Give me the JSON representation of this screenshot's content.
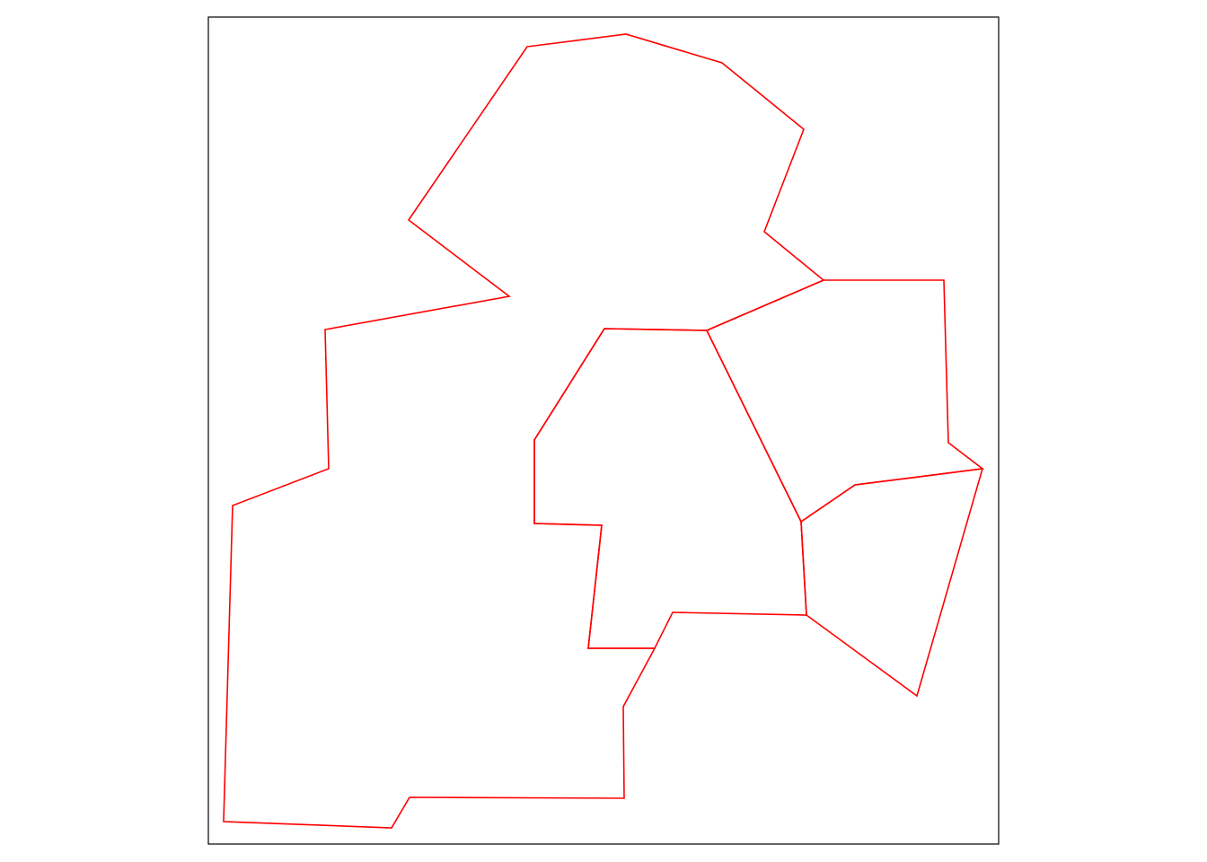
{
  "map": {
    "colors": {
      "background": "#ffffff",
      "frame": "#000000",
      "boundary": "#ff0000"
    },
    "regions": [
      {
        "id": "region-north"
      },
      {
        "id": "region-west"
      },
      {
        "id": "region-central"
      },
      {
        "id": "region-east"
      },
      {
        "id": "region-southeast"
      }
    ]
  }
}
